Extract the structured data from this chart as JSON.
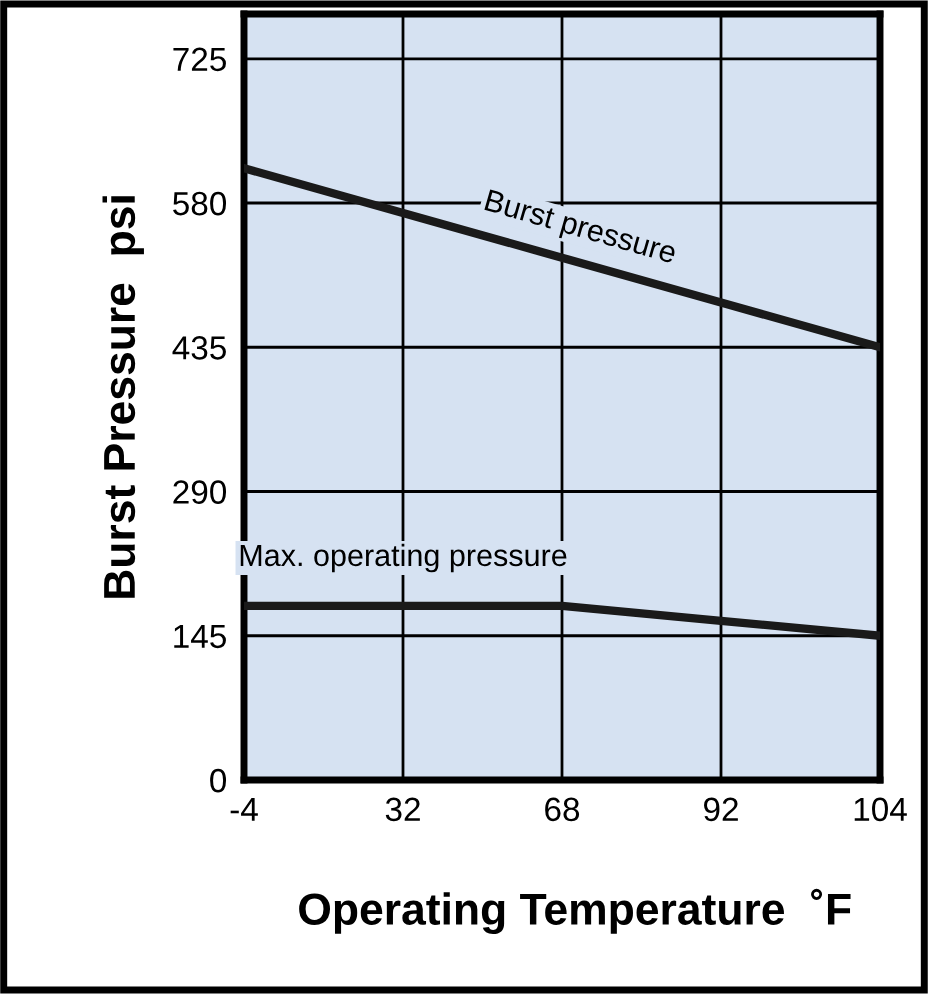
{
  "chart_data": {
    "type": "line",
    "xlabel": "Operating Temperature  ˚F",
    "ylabel": "Burst Pressure  psi",
    "categories": [
      "-4",
      "32",
      "68",
      "92",
      "104"
    ],
    "series": [
      {
        "name": "Burst pressure",
        "color": "#1a1a1a",
        "values": [
          615,
          570,
          525,
          480,
          435
        ]
      },
      {
        "name": "Max. operating pressure",
        "color": "#1a1a1a",
        "values": [
          175,
          175,
          175,
          160,
          145
        ]
      }
    ],
    "ylim": [
      0,
      770
    ],
    "yticks": [
      0,
      145,
      290,
      435,
      580,
      725
    ],
    "grid": true,
    "legend": false,
    "marker": "none",
    "line_style": "solid"
  }
}
